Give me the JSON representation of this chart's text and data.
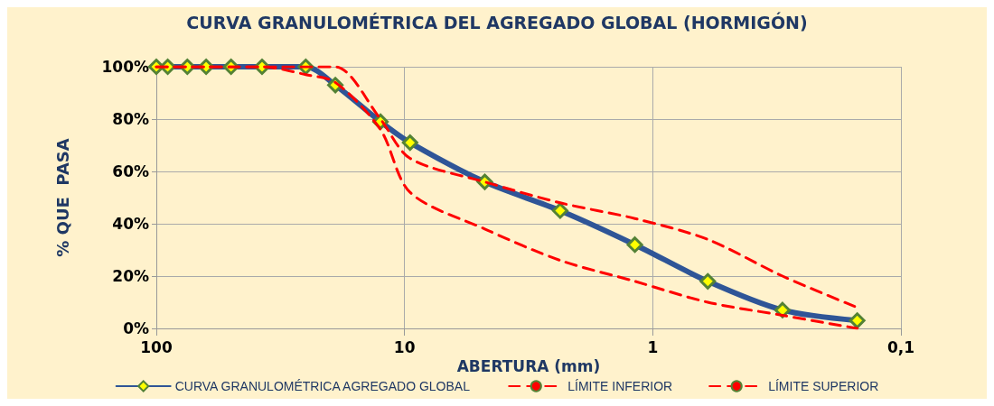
{
  "chart_data": {
    "type": "line",
    "title": "CURVA GRANULOMÉTRICA DEL AGREGADO GLOBAL (HORMIGÓN)",
    "xlabel": "ABERTURA (mm)",
    "ylabel": "% QUE  PASA",
    "x": [
      100,
      90,
      75,
      63,
      50,
      37.5,
      25,
      19,
      12.5,
      9.5,
      4.75,
      2.36,
      1.18,
      0.6,
      0.3,
      0.15
    ],
    "log": "x",
    "xlim": [
      100,
      0.1
    ],
    "xticks": [
      100,
      10,
      1,
      {
        "value": 0.1,
        "label": "0,1"
      }
    ],
    "ylim": [
      0,
      100
    ],
    "yticks": [
      {
        "value": 0,
        "label": "0%"
      },
      {
        "value": 20,
        "label": "20%"
      },
      {
        "value": 40,
        "label": "40%"
      },
      {
        "value": 60,
        "label": "60%"
      },
      {
        "value": 80,
        "label": "80%"
      },
      {
        "value": 100,
        "label": "100%"
      }
    ],
    "grid": true,
    "legend": "bottom",
    "series": [
      {
        "name": "CURVA GRANULOMÉTRICA AGREGADO GLOBAL",
        "color": "#2f5597",
        "marker": "diamond",
        "line_style": "solid",
        "values": [
          100,
          100,
          100,
          100,
          100,
          100,
          100,
          93,
          79,
          71,
          56,
          45,
          32,
          18,
          7,
          3
        ]
      },
      {
        "name": "LÍMITE INFERIOR",
        "color": "#ff0000",
        "marker": "none",
        "line_style": "dashed",
        "values": [
          100,
          100,
          100,
          100,
          100,
          100,
          97,
          94,
          76,
          52,
          38,
          26,
          18,
          10,
          5,
          0
        ]
      },
      {
        "name": "LÍMITE SUPERIOR",
        "color": "#ff0000",
        "marker": "none",
        "line_style": "dashed",
        "values": [
          100,
          100,
          100,
          100,
          100,
          100,
          100,
          100,
          80,
          65,
          56,
          48,
          42,
          34,
          20,
          8
        ]
      }
    ]
  }
}
